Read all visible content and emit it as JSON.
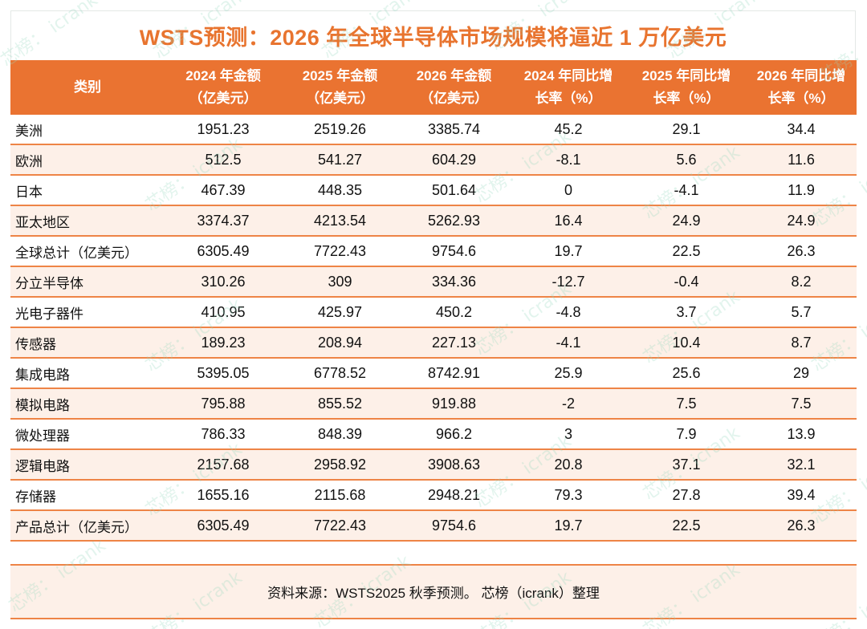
{
  "title": "WSTS预测：2026 年全球半导体市场规模将逼近 1 万亿美元",
  "colors": {
    "accent": "#ea7331",
    "title": "#e8742f",
    "row_alt": "#fdf0e8",
    "row_border": "#ee8446",
    "watermark": "#96d7be"
  },
  "watermark": {
    "text_cn": "芯榜：",
    "text_en": "icrank"
  },
  "table": {
    "headers": [
      {
        "line1": "类别",
        "line2": ""
      },
      {
        "line1": "2024 年金额",
        "line2": "（亿美元）"
      },
      {
        "line1": "2025 年金额",
        "line2": "（亿美元）"
      },
      {
        "line1": "2026 年金额",
        "line2": "（亿美元）"
      },
      {
        "line1": "2024 年同比增",
        "line2": "长率（%）"
      },
      {
        "line1": "2025 年同比增",
        "line2": "长率（%）"
      },
      {
        "line1": "2026 年同比增",
        "line2": "长率（%）"
      }
    ],
    "rows": [
      {
        "category": "美洲",
        "v2024": "1951.23",
        "v2025": "2519.26",
        "v2026": "3385.74",
        "g2024": "45.2",
        "g2025": "29.1",
        "g2026": "34.4"
      },
      {
        "category": "欧洲",
        "v2024": "512.5",
        "v2025": "541.27",
        "v2026": "604.29",
        "g2024": "-8.1",
        "g2025": "5.6",
        "g2026": "11.6"
      },
      {
        "category": "日本",
        "v2024": "467.39",
        "v2025": "448.35",
        "v2026": "501.64",
        "g2024": "0",
        "g2025": "-4.1",
        "g2026": "11.9"
      },
      {
        "category": "亚太地区",
        "v2024": "3374.37",
        "v2025": "4213.54",
        "v2026": "5262.93",
        "g2024": "16.4",
        "g2025": "24.9",
        "g2026": "24.9"
      },
      {
        "category": "全球总计（亿美元）",
        "v2024": "6305.49",
        "v2025": "7722.43",
        "v2026": "9754.6",
        "g2024": "19.7",
        "g2025": "22.5",
        "g2026": "26.3"
      },
      {
        "category": "分立半导体",
        "v2024": "310.26",
        "v2025": "309",
        "v2026": "334.36",
        "g2024": "-12.7",
        "g2025": "-0.4",
        "g2026": "8.2"
      },
      {
        "category": "光电子器件",
        "v2024": "410.95",
        "v2025": "425.97",
        "v2026": "450.2",
        "g2024": "-4.8",
        "g2025": "3.7",
        "g2026": "5.7"
      },
      {
        "category": "传感器",
        "v2024": "189.23",
        "v2025": "208.94",
        "v2026": "227.13",
        "g2024": "-4.1",
        "g2025": "10.4",
        "g2026": "8.7"
      },
      {
        "category": "集成电路",
        "v2024": "5395.05",
        "v2025": "6778.52",
        "v2026": "8742.91",
        "g2024": "25.9",
        "g2025": "25.6",
        "g2026": "29"
      },
      {
        "category": "模拟电路",
        "v2024": "795.88",
        "v2025": "855.52",
        "v2026": "919.88",
        "g2024": "-2",
        "g2025": "7.5",
        "g2026": "7.5"
      },
      {
        "category": "微处理器",
        "v2024": "786.33",
        "v2025": "848.39",
        "v2026": "966.2",
        "g2024": "3",
        "g2025": "7.9",
        "g2026": "13.9"
      },
      {
        "category": "逻辑电路",
        "v2024": "2157.68",
        "v2025": "2958.92",
        "v2026": "3908.63",
        "g2024": "20.8",
        "g2025": "37.1",
        "g2026": "32.1"
      },
      {
        "category": "存储器",
        "v2024": "1655.16",
        "v2025": "2115.68",
        "v2026": "2948.21",
        "g2024": "79.3",
        "g2025": "27.8",
        "g2026": "39.4"
      },
      {
        "category": "产品总计（亿美元）",
        "v2024": "6305.49",
        "v2025": "7722.43",
        "v2026": "9754.6",
        "g2024": "19.7",
        "g2025": "22.5",
        "g2026": "26.3"
      }
    ]
  },
  "footer": {
    "source": "资料来源：WSTS2025 秋季预测。 芯榜（icrank）整理"
  }
}
